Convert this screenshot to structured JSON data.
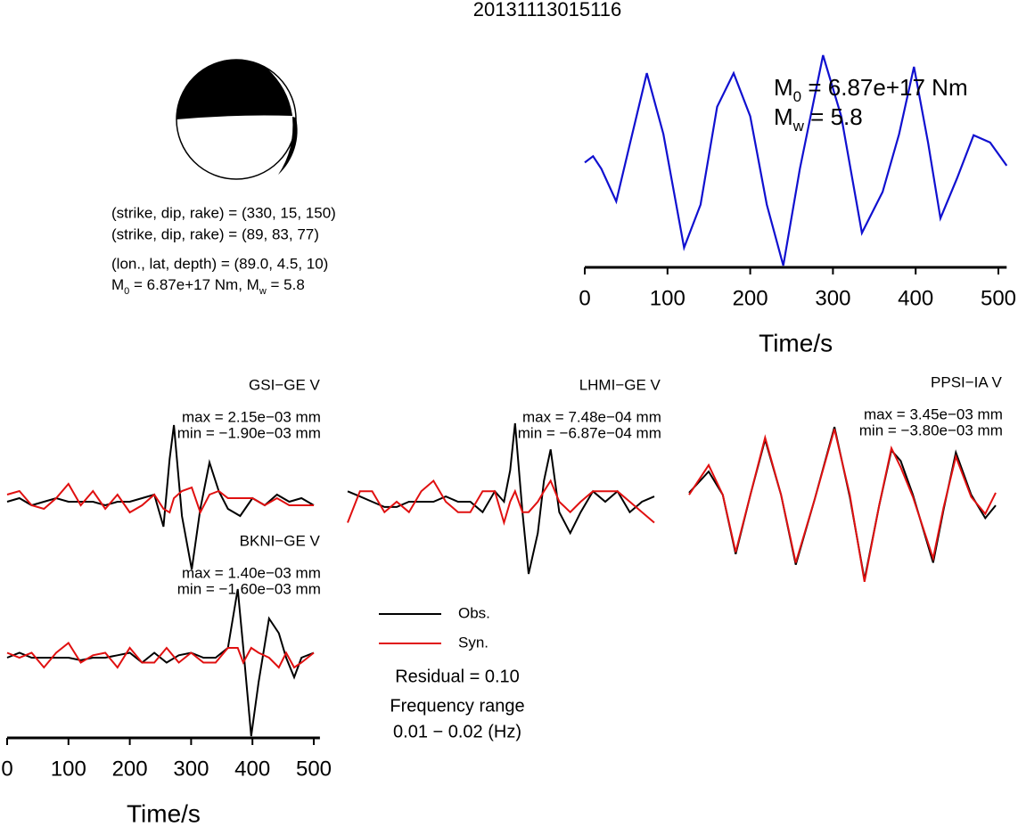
{
  "title": "20131113015116",
  "mechanism": {
    "lines": [
      "(strike, dip, rake) = (330, 15, 150)",
      "(strike, dip, rake) = (89, 83, 77)",
      "(lon., lat, depth) = (89.0, 4.5, 10)"
    ],
    "moment_line": [
      "M",
      "0",
      " = 6.87e+17 Nm, M",
      "w",
      " = 5.8"
    ]
  },
  "chart_data": [
    {
      "type": "line",
      "x": [
        0,
        10,
        20,
        38,
        55,
        75,
        95,
        120,
        140,
        160,
        180,
        200,
        220,
        240,
        260,
        288,
        310,
        335,
        360,
        380,
        398,
        415,
        430,
        450,
        470,
        490,
        510
      ],
      "series": [
        {
          "color": "#1010d0",
          "values": [
            -0.02,
            0.04,
            -0.08,
            -0.39,
            0.17,
            0.83,
            0.25,
            -0.83,
            -0.42,
            0.51,
            0.83,
            0.42,
            -0.42,
            -1.0,
            -0.08,
            1.0,
            0.42,
            -0.69,
            -0.3,
            0.25,
            0.89,
            0.17,
            -0.55,
            -0.17,
            0.24,
            0.17,
            -0.05
          ]
        }
      ],
      "xlim": [
        0,
        510
      ],
      "ylim": [
        -1,
        1
      ],
      "xticks": [
        0,
        100,
        200,
        300,
        400,
        500
      ],
      "xlabel": "Time/s",
      "annotations": [
        [
          "M",
          "0",
          " = 6.87e+17 Nm"
        ],
        [
          "M",
          "w",
          " = 5.8"
        ]
      ]
    },
    {
      "type": "line",
      "station": "GSI−GE V",
      "max_label": "max = 2.15e−03 mm",
      "min_label": "min = −1.90e−03 mm",
      "x": [
        0,
        20,
        40,
        60,
        80,
        100,
        120,
        140,
        160,
        180,
        200,
        220,
        240,
        255,
        265,
        272,
        285,
        301,
        315,
        330,
        345,
        360,
        380,
        400,
        420,
        440,
        460,
        480,
        500
      ],
      "series": [
        {
          "name": "Obs.",
          "color": "#000000",
          "values": [
            0,
            0.0001,
            -0.0001,
            0,
            0.0001,
            0,
            0,
            0,
            -0.0001,
            0,
            0,
            0.0001,
            0.0002,
            -0.0007,
            0.0012,
            0.00215,
            -0.0004,
            -0.0019,
            -0.0002,
            0.0011,
            0.0003,
            -0.0002,
            -0.0004,
            0.0001,
            -0.0001,
            0.0002,
            0,
            0.0001,
            -0.0001
          ]
        },
        {
          "name": "Syn.",
          "color": "#e01010",
          "values": [
            0.0002,
            0.0003,
            -0.0001,
            -0.0002,
            0.0001,
            0.0005,
            -0.0001,
            0.0003,
            -0.0002,
            0.0002,
            -0.0003,
            -0.0001,
            0.0002,
            -0.0002,
            -0.0003,
            0.0001,
            0.0003,
            0.0004,
            -0.0003,
            0.0002,
            0.0003,
            0.0001,
            0.0001,
            0.0001,
            -0.0001,
            0.0001,
            -0.0001,
            -0.0001,
            -0.0001
          ]
        }
      ],
      "xlim": [
        0,
        510
      ],
      "ylim": [
        -0.0022,
        0.0022
      ]
    },
    {
      "type": "line",
      "station": "LHMI−GE V",
      "max_label": "max = 7.48e−04 mm",
      "min_label": "min = −6.87e−04 mm",
      "x": [
        0,
        20,
        40,
        60,
        80,
        100,
        120,
        140,
        160,
        180,
        200,
        220,
        240,
        255,
        265,
        273,
        285,
        295,
        310,
        320,
        331,
        345,
        363,
        380,
        400,
        420,
        440,
        460,
        480,
        500
      ],
      "series": [
        {
          "color": "#000000",
          "values": [
            0.0001,
            5e-05,
            0,
            -5e-05,
            -5e-05,
            0,
            0,
            0,
            5e-05,
            0,
            0,
            -0.0001,
            0.0001,
            0,
            0.0003,
            0.00075,
            -0.0001,
            -0.00069,
            -0.0003,
            0.0002,
            0.0005,
            -0.0001,
            -0.0003,
            -0.0001,
            0.0001,
            0,
            0.0001,
            -0.0001,
            0,
            5e-05
          ]
        },
        {
          "color": "#e01010",
          "values": [
            -0.0002,
            0.0001,
            0.0001,
            -0.0001,
            0,
            -0.0001,
            0.0001,
            0.0002,
            0,
            -0.0001,
            -0.0001,
            0.0001,
            0.0001,
            -0.0002,
            0,
            0.0001,
            -0.0001,
            -0.0001,
            0,
            0.0001,
            0.0002,
            0,
            -0.0001,
            0,
            0.0001,
            0.0001,
            0.0001,
            0,
            -0.0001,
            -0.0002
          ]
        }
      ],
      "xlim": [
        0,
        510
      ],
      "ylim": [
        -0.00075,
        0.00075
      ]
    },
    {
      "type": "line",
      "station": "PPSI−IA V",
      "max_label": "max = 3.45e−03 mm",
      "min_label": "min = −3.80e−03 mm",
      "x": [
        0,
        32,
        55,
        76,
        100,
        124,
        150,
        174,
        205,
        237,
        262,
        286,
        310,
        330,
        345,
        365,
        398,
        415,
        435,
        460,
        483,
        500
      ],
      "series": [
        {
          "color": "#000000",
          "values": [
            0.0003,
            0.0013,
            0.0002,
            -0.0026,
            0.0002,
            0.0028,
            0.0002,
            -0.0031,
            0,
            0.0034,
            0.0001,
            -0.0038,
            -0.0003,
            0.0023,
            0.0018,
            0.0002,
            -0.003,
            -0.0005,
            0.0022,
            0.0002,
            -0.0009,
            -0.0003
          ]
        },
        {
          "color": "#e01010",
          "values": [
            0.0002,
            0.0016,
            0.0002,
            -0.0025,
            0.0002,
            0.0029,
            0.0002,
            -0.003,
            0,
            0.0033,
            0.0002,
            -0.0039,
            -0.0003,
            0.0024,
            0.0015,
            0.0001,
            -0.0028,
            -0.0004,
            0.002,
            0.0001,
            -0.0007,
            0.0003
          ]
        }
      ],
      "xlim": [
        0,
        510
      ],
      "ylim": [
        -0.0037,
        0.0037
      ]
    },
    {
      "type": "line",
      "station": "BKNI−GE V",
      "max_label": "max = 1.40e−03 mm",
      "min_label": "min = −1.60e−03 mm",
      "x": [
        0,
        20,
        40,
        60,
        80,
        100,
        120,
        140,
        160,
        180,
        200,
        220,
        240,
        260,
        280,
        300,
        320,
        340,
        360,
        376,
        385,
        398,
        410,
        427,
        443,
        455,
        468,
        480,
        500
      ],
      "series": [
        {
          "color": "#000000",
          "values": [
            0,
            0.0001,
            0,
            0,
            0,
            0,
            -5e-05,
            0,
            0,
            5e-05,
            0.0001,
            -0.0001,
            0.0001,
            -0.0001,
            5e-05,
            0.0001,
            0,
            0,
            0.0002,
            0.0014,
            0.0002,
            -0.0016,
            -0.0005,
            0.0008,
            0.0005,
            0,
            -0.0004,
            0,
            0.0001
          ]
        },
        {
          "color": "#e01010",
          "values": [
            0.0001,
            0,
            0.0001,
            -0.0002,
            0.0001,
            0.0003,
            -0.0001,
            5e-05,
            0.0001,
            -0.0002,
            0.0002,
            -0.0001,
            -0.0001,
            0.0002,
            -0.0001,
            0.0001,
            -0.0001,
            -0.0001,
            0.0002,
            0.0002,
            -0.0001,
            0.0002,
            0.0001,
            0,
            -0.0002,
            0.0001,
            -0.0002,
            -0.0001,
            0.0001
          ]
        }
      ],
      "xlim": [
        0,
        510
      ],
      "ylim": [
        -0.0016,
        0.0016
      ],
      "xticks": [
        0,
        100,
        200,
        300,
        400,
        500
      ],
      "xlabel": "Time/s"
    }
  ],
  "legend": {
    "residual": "Residual = 0.10",
    "frequency_title": "Frequency range",
    "frequency_range": "0.01 − 0.02 (Hz)"
  }
}
